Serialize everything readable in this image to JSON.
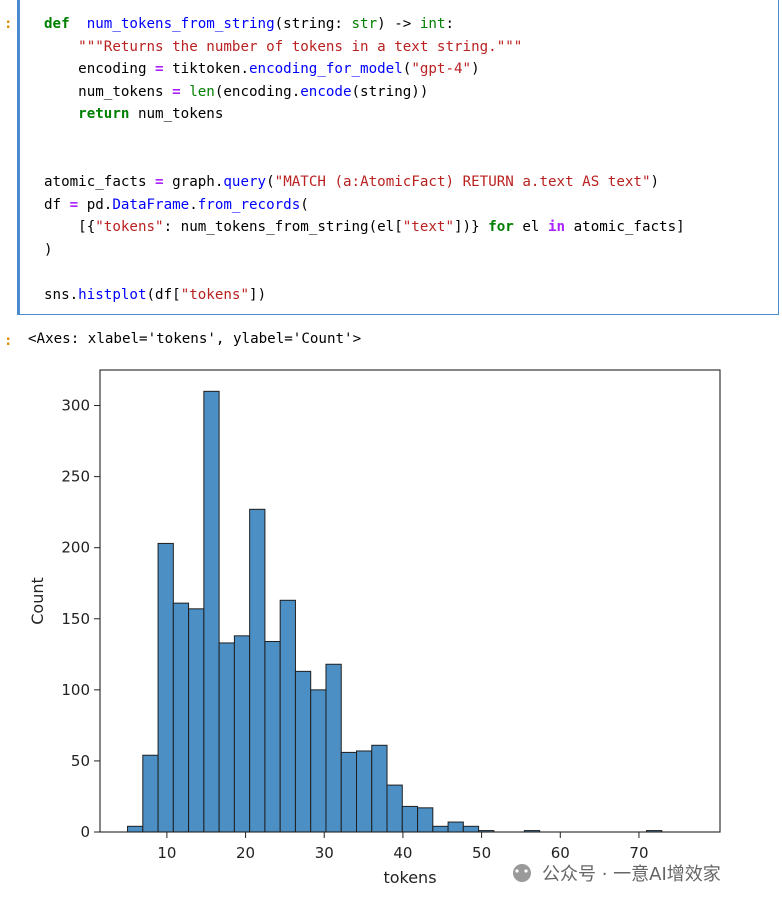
{
  "cell_prompts": {
    "input": ":",
    "output": ":"
  },
  "code_lines": [
    [
      [
        "kw",
        "def"
      ],
      [
        "",
        "  "
      ],
      [
        "fn",
        "num_tokens_from_string"
      ],
      [
        "",
        "(string: "
      ],
      [
        "bt",
        "str"
      ],
      [
        "",
        ") -> "
      ],
      [
        "bt",
        "int"
      ],
      [
        "",
        ":"
      ]
    ],
    [
      [
        "",
        "    "
      ],
      [
        "str",
        "\"\"\"Returns the number of tokens in a text string.\"\"\""
      ]
    ],
    [
      [
        "",
        "    encoding "
      ],
      [
        "op",
        "="
      ],
      [
        "",
        " tiktoken."
      ],
      [
        "fn",
        "encoding_for_model"
      ],
      [
        "",
        "("
      ],
      [
        "str",
        "\"gpt-4\""
      ],
      [
        "",
        ")"
      ]
    ],
    [
      [
        "",
        "    num_tokens "
      ],
      [
        "op",
        "="
      ],
      [
        "",
        " "
      ],
      [
        "bt",
        "len"
      ],
      [
        "",
        "(encoding."
      ],
      [
        "fn",
        "encode"
      ],
      [
        "",
        "(string))"
      ]
    ],
    [
      [
        "",
        "    "
      ],
      [
        "kw",
        "return"
      ],
      [
        "",
        " num_tokens"
      ]
    ],
    [
      [
        "",
        ""
      ]
    ],
    [
      [
        "",
        ""
      ]
    ],
    [
      [
        "",
        "atomic_facts "
      ],
      [
        "op",
        "="
      ],
      [
        "",
        " graph."
      ],
      [
        "fn",
        "query"
      ],
      [
        "",
        "("
      ],
      [
        "str",
        "\"MATCH (a:AtomicFact) RETURN a.text AS text\""
      ],
      [
        "",
        ")"
      ]
    ],
    [
      [
        "",
        "df "
      ],
      [
        "op",
        "="
      ],
      [
        "",
        " pd."
      ],
      [
        "fn",
        "DataFrame"
      ],
      [
        "",
        "."
      ],
      [
        "fn",
        "from_records"
      ],
      [
        "",
        "("
      ]
    ],
    [
      [
        "",
        "    [{"
      ],
      [
        "str",
        "\"tokens\""
      ],
      [
        "",
        ": num_tokens_from_string(el["
      ],
      [
        "str",
        "\"text\""
      ],
      [
        "",
        "])} "
      ],
      [
        "kw",
        "for"
      ],
      [
        "",
        " el "
      ],
      [
        "op",
        "in"
      ],
      [
        "",
        " atomic_facts]"
      ]
    ],
    [
      [
        "",
        ")"
      ]
    ],
    [
      [
        "",
        ""
      ]
    ],
    [
      [
        "",
        "sns."
      ],
      [
        "fn",
        "histplot"
      ],
      [
        "",
        "(df["
      ],
      [
        "str",
        "\"tokens\""
      ],
      [
        "",
        "])"
      ]
    ]
  ],
  "output_text": "<Axes: xlabel='tokens', ylabel='Count'>",
  "watermark": "公众号 · 一意AI增效家",
  "colors": {
    "bar_fill": "#4c8fc4",
    "bar_edge": "#1f1f1f",
    "cell_border": "#4a8bd0",
    "prompt": "#e08a00"
  },
  "chart_data": {
    "type": "bar",
    "xlabel": "tokens",
    "ylabel": "Count",
    "bin_edges": [
      5,
      6.94,
      8.88,
      10.82,
      12.76,
      14.7,
      16.64,
      18.58,
      20.52,
      22.46,
      24.4,
      26.34,
      28.28,
      30.22,
      32.16,
      34.1,
      36.04,
      37.98,
      39.92,
      41.86,
      43.8,
      45.74,
      47.68,
      49.62,
      51.56,
      53.5,
      55.44,
      57.38,
      59.32,
      61.26,
      63.2,
      65.14,
      67.08,
      69.02,
      70.96,
      72.9,
      74.84,
      76.78
    ],
    "values": [
      4,
      54,
      203,
      161,
      157,
      310,
      133,
      138,
      227,
      134,
      163,
      113,
      100,
      118,
      56,
      57,
      61,
      33,
      18,
      17,
      4,
      7,
      4,
      1,
      0,
      0,
      1,
      0,
      0,
      0,
      0,
      0,
      0,
      0,
      1,
      0,
      0
    ],
    "xticks": [
      10,
      20,
      30,
      40,
      50,
      60,
      70
    ],
    "yticks": [
      0,
      50,
      100,
      150,
      200,
      250,
      300
    ],
    "xlim": [
      1.5,
      80.3
    ],
    "ylim": [
      0,
      325
    ]
  }
}
